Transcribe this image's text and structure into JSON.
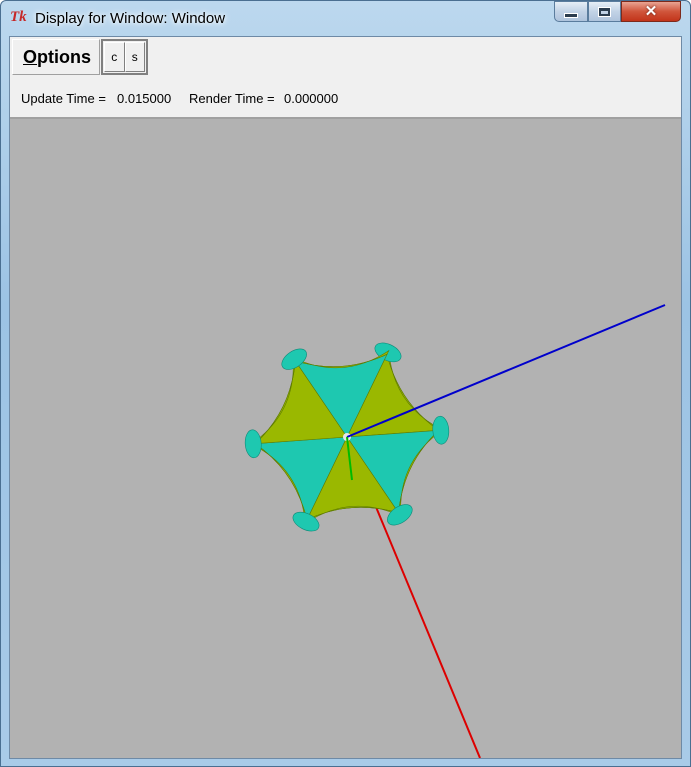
{
  "window": {
    "title": "Display for Window: Window",
    "icon": "tk-feather-icon",
    "icon_text": "Tk",
    "controls": {
      "minimize": "minimize-icon",
      "maximize": "maximize-icon",
      "close": "close-icon"
    }
  },
  "menubar": {
    "options_label": "Options",
    "options_accel": "O",
    "options_rest": "ptions",
    "buttons": [
      "c",
      "s"
    ]
  },
  "status": {
    "update_label": "Update Time =",
    "update_value": "0.015000",
    "render_label": "Render Time =",
    "render_value": "0.000000"
  },
  "viewport": {
    "background": "#b2b2b2",
    "axes": [
      {
        "name": "x-axis",
        "color": "#dd0000"
      },
      {
        "name": "y-axis",
        "color": "#00bb00"
      },
      {
        "name": "z-axis",
        "color": "#0000cc"
      }
    ],
    "surface_colors": {
      "front": "#9ab800",
      "back": "#1ec8b0"
    }
  }
}
